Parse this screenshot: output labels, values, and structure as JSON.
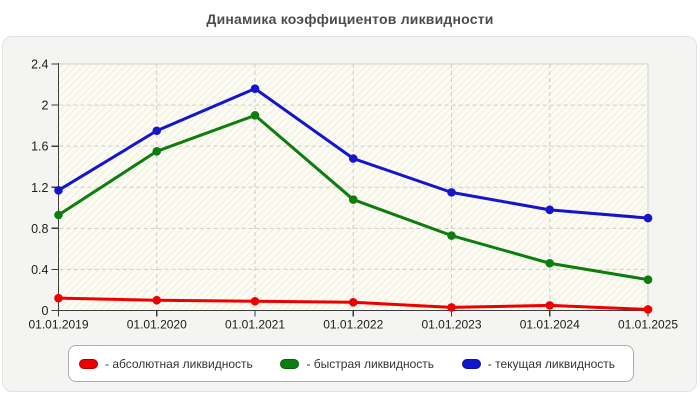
{
  "title": "Динамика коэффициентов ликвидности",
  "chart_data": {
    "type": "line",
    "title": "Динамика коэффициентов ликвидности",
    "categories": [
      "01.01.2019",
      "01.01.2020",
      "01.01.2021",
      "01.01.2022",
      "01.01.2023",
      "01.01.2024",
      "01.01.2025"
    ],
    "series": [
      {
        "name": "абсолютная ликвидность",
        "legend_label": "- абсолютная ликвидность",
        "color": "#ed0000",
        "values": [
          0.12,
          0.1,
          0.09,
          0.08,
          0.03,
          0.05,
          0.01
        ]
      },
      {
        "name": "быстрая ликвидность",
        "legend_label": "- быстрая ликвидность",
        "color": "#0d7d0d",
        "values": [
          0.93,
          1.55,
          1.9,
          1.08,
          0.73,
          0.46,
          0.3
        ]
      },
      {
        "name": "текущая ликвидность",
        "legend_label": "- текущая ликвидность",
        "color": "#1515cd",
        "values": [
          1.17,
          1.75,
          2.16,
          1.48,
          1.15,
          0.98,
          0.9
        ]
      }
    ],
    "ylim": [
      0,
      2.4
    ],
    "ytick_step": 0.4,
    "yticks": [
      "0",
      "0.4",
      "0.8",
      "1.2",
      "1.6",
      "2",
      "2.4"
    ],
    "grid": true,
    "legend_position": "bottom",
    "colors": {
      "plot_bg": "#fdfcf2",
      "hatch_line": "#eae9dd",
      "grid": "#cccccc",
      "axis": "#3d3d3d",
      "plot_border": "#dcdcd4",
      "tick_label": "#1c1c1c"
    }
  }
}
